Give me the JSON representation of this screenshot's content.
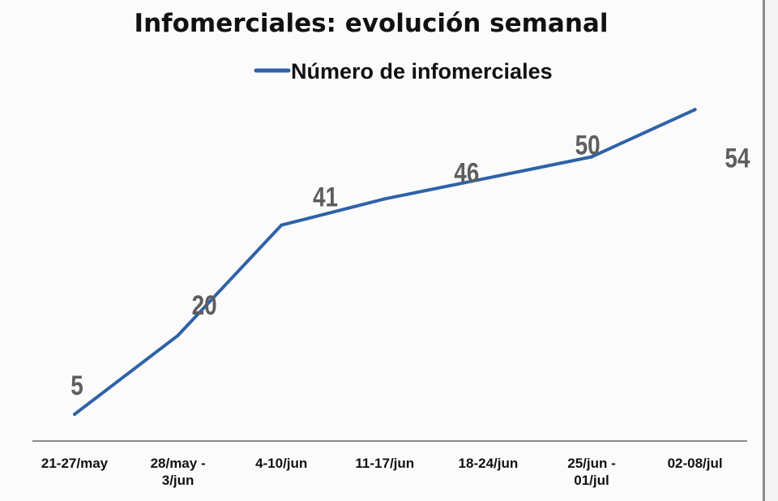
{
  "chart_data": {
    "type": "line",
    "title": "Infomerciales: evolución semanal",
    "xlabel": "",
    "ylabel": "",
    "categories": [
      [
        "21-27/may"
      ],
      [
        "28/may -",
        "3/jun"
      ],
      [
        "4-10/jun"
      ],
      [
        "11-17/jun"
      ],
      [
        "18-24/jun"
      ],
      [
        "25/jun -",
        "01/jul"
      ],
      [
        "02-08/jul"
      ]
    ],
    "series": [
      {
        "name": "Número de infomerciales",
        "values": [
          5,
          20,
          41,
          46,
          50,
          54,
          63
        ],
        "color": "#2f62a8"
      }
    ],
    "ylim": [
      0,
      70
    ],
    "grid": false,
    "legend": "top-center",
    "data_labels": true,
    "label_color": "#5e5e5e"
  }
}
